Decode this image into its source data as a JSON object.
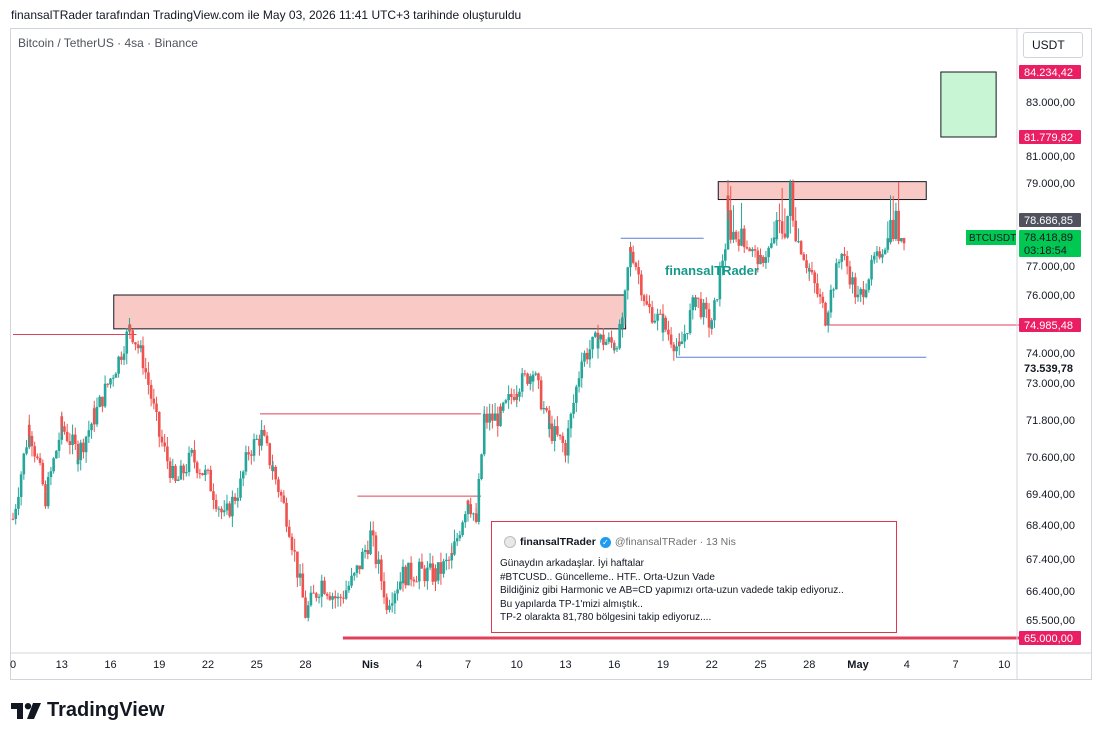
{
  "header": {
    "caption": "finansalTRader tarafından TradingView.com ile May 03, 2026 11:41 UTC+3 tarihinde oluşturuldu"
  },
  "chart_meta": {
    "symbol_line": "Bitcoin / TetherUS · 4sa · Binance",
    "currency": "USDT",
    "watermark": "finansalTRader",
    "footer_brand": "TradingView"
  },
  "tweet": {
    "name": "finansalTRader",
    "handle": "@finansalTRader · 13 Nis",
    "lines": [
      "Günaydın arkadaşlar. İyi haftalar",
      "#BTCUSD.. Güncelleme.. HTF.. Orta-Uzun Vade",
      "Bildiğiniz gibi Harmonic ve AB=CD yapımızı orta-uzun vadede takip ediyoruz..",
      "Bu yapılarda TP-1'mizi almıştık..",
      "TP-2 olarakta 81,780 bölgesini takip ediyoruz...."
    ]
  },
  "colors": {
    "up": "#26a69a",
    "down": "#ef5350",
    "resistance_fill": "#f8c9c5",
    "target_fill": "#c8f5d3",
    "line_red": "#e0405a",
    "line_blue": "#5b7fd6",
    "tag_red": "#e91e63",
    "tag_green": "#00c853",
    "tag_dark": "#50535e"
  },
  "chart_data": {
    "type": "candlestick",
    "title": "Bitcoin / TetherUS · 4sa · Binance",
    "y_ticks": [
      "83.000,00",
      "81.000,00",
      "79.000,00",
      "77.000,00",
      "76.000,00",
      "74.000,00",
      "73.000,00",
      "71.800,00",
      "70.600,00",
      "69.400,00",
      "68.400,00",
      "67.400,00",
      "66.400,00",
      "65.500,00"
    ],
    "y_tick_values": [
      83000,
      81000,
      79000,
      77000,
      76000,
      74000,
      73000,
      71800,
      70600,
      69400,
      68400,
      67400,
      66400,
      65500
    ],
    "x_ticks": [
      {
        "label": "0",
        "day": 10
      },
      {
        "label": "13",
        "day": 13
      },
      {
        "label": "16",
        "day": 16
      },
      {
        "label": "19",
        "day": 19
      },
      {
        "label": "22",
        "day": 22
      },
      {
        "label": "25",
        "day": 25
      },
      {
        "label": "28",
        "day": 28
      },
      {
        "label": "Nis",
        "day": 32,
        "bold": true
      },
      {
        "label": "4",
        "day": 35
      },
      {
        "label": "7",
        "day": 38
      },
      {
        "label": "10",
        "day": 41
      },
      {
        "label": "13",
        "day": 44
      },
      {
        "label": "16",
        "day": 47
      },
      {
        "label": "19",
        "day": 50
      },
      {
        "label": "22",
        "day": 53
      },
      {
        "label": "25",
        "day": 56
      },
      {
        "label": "28",
        "day": 59
      },
      {
        "label": "May",
        "day": 62,
        "bold": true
      },
      {
        "label": "4",
        "day": 65
      },
      {
        "label": "7",
        "day": 68
      },
      {
        "label": "10",
        "day": 71
      }
    ],
    "price_tags": [
      {
        "label": "84.234,42",
        "value": 84234.42,
        "style": "red"
      },
      {
        "label": "81.779,82",
        "value": 81779.82,
        "style": "red"
      },
      {
        "label": "78.686,85",
        "value": 78686.85,
        "style": "dark"
      },
      {
        "label": "78.418,89",
        "value": 78418.89,
        "style": "green"
      },
      {
        "label": "03:18:54",
        "value": 78000,
        "style": "green_timer"
      },
      {
        "label": "74.985,48",
        "value": 74985.48,
        "style": "red"
      },
      {
        "label": "73.539,78",
        "value": 73539.78,
        "style": "plain"
      },
      {
        "label": "65.000,00",
        "value": 65000,
        "style": "red"
      }
    ],
    "symbol_tag": "BTCUSDT",
    "zones": [
      {
        "kind": "resistance",
        "day_from": 16.2,
        "day_to": 47.7,
        "price_top": 76000,
        "price_bottom": 74850
      },
      {
        "kind": "resistance",
        "day_from": 53.4,
        "day_to": 66.2,
        "price_top": 79100,
        "price_bottom": 78860
      },
      {
        "kind": "target",
        "day_from": 67.1,
        "day_to": 70.5,
        "price_top": 84234.42,
        "price_bottom": 81779.82
      }
    ],
    "levels": [
      {
        "color": "line_red",
        "price": 74650,
        "day_from": 10,
        "day_to": 17.6
      },
      {
        "color": "line_red",
        "price": 72000,
        "day_from": 25.2,
        "day_to": 38.8
      },
      {
        "color": "line_red",
        "price": 69330,
        "day_from": 31.2,
        "day_to": 38.8
      },
      {
        "color": "line_red",
        "price": 74985.48,
        "day_from": 59.9,
        "day_to": 72.2,
        "tagged": true
      },
      {
        "color": "line_red",
        "price": 65000,
        "day_from": 30.3,
        "day_to": 72.2,
        "tagged": true,
        "thick": true
      },
      {
        "color": "line_blue",
        "price": 78360,
        "day_from": 47.4,
        "day_to": 52.5
      },
      {
        "color": "line_blue",
        "price": 73870,
        "day_from": 50.8,
        "day_to": 66.2
      }
    ],
    "path": [
      [
        10,
        68.6
      ],
      [
        11,
        71.6
      ],
      [
        12,
        69.3
      ],
      [
        13,
        71.6
      ],
      [
        14,
        70.7
      ],
      [
        15,
        71.9
      ],
      [
        16.5,
        73.8
      ],
      [
        17.2,
        74.9
      ],
      [
        18,
        73.8
      ],
      [
        19,
        71.3
      ],
      [
        20,
        69.7
      ],
      [
        21,
        70.6
      ],
      [
        22,
        69.9
      ],
      [
        23,
        68.6
      ],
      [
        24,
        69.7
      ],
      [
        24.5,
        70.8
      ],
      [
        25.3,
        71.3
      ],
      [
        26,
        70.2
      ],
      [
        27,
        68.4
      ],
      [
        28,
        65.7
      ],
      [
        29,
        66.7
      ],
      [
        30,
        66.1
      ],
      [
        31,
        66.8
      ],
      [
        32,
        68.1
      ],
      [
        33,
        66.1
      ],
      [
        34,
        66.9
      ],
      [
        35,
        67.0
      ],
      [
        36,
        66.9
      ],
      [
        37,
        67.4
      ],
      [
        38,
        69.3
      ],
      [
        38.5,
        68.5
      ],
      [
        39,
        71.8
      ],
      [
        40,
        71.9
      ],
      [
        41,
        72.9
      ],
      [
        42,
        73.4
      ],
      [
        43,
        71.5
      ],
      [
        44,
        70.9
      ],
      [
        45,
        73.8
      ],
      [
        46,
        74.5
      ],
      [
        47,
        74.3
      ],
      [
        47.5,
        74.9
      ],
      [
        48,
        77.8
      ],
      [
        49,
        75.6
      ],
      [
        50,
        75.0
      ],
      [
        51,
        74.1
      ],
      [
        52,
        75.9
      ],
      [
        53,
        74.9
      ],
      [
        54,
        78.6
      ],
      [
        55,
        78.2
      ],
      [
        56,
        77.2
      ],
      [
        57,
        78.4
      ],
      [
        58,
        78.9
      ],
      [
        59,
        76.8
      ],
      [
        60,
        75.3
      ],
      [
        61,
        77.6
      ],
      [
        62,
        75.8
      ],
      [
        63,
        77.2
      ],
      [
        64,
        78.5
      ],
      [
        65,
        78.42
      ]
    ],
    "x_range_days": [
      9.9,
      72.2
    ],
    "y_range": [
      64600,
      85700
    ],
    "grid": false
  }
}
